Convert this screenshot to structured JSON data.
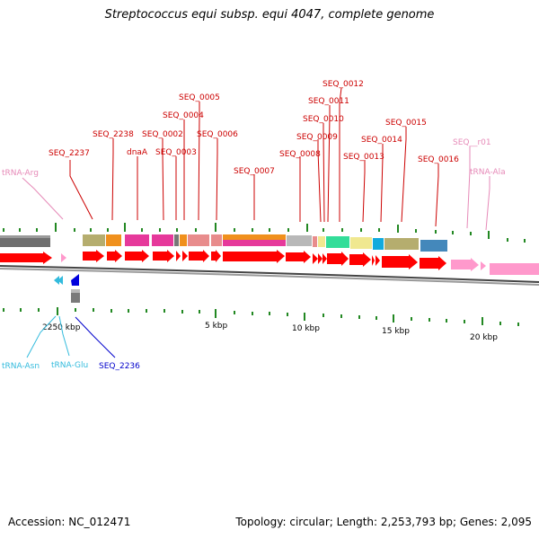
{
  "title": "Streptococcus equi subsp. equi 4047, complete genome",
  "footer": {
    "accession": "Accession: NC_012471",
    "summary": "Topology: circular; Length: 2,253,793 bp; Genes: 2,095"
  },
  "colors": {
    "cds": "#ff0000",
    "trna": "#ff99cc",
    "label_gene": "#cc0000",
    "label_trna": "#e68ab8",
    "label_trna_cyan": "#33bbdd",
    "label_seq_blue": "#0000cc",
    "tick": "#228822",
    "backbone": "#888888"
  },
  "ruler": {
    "labels": [
      "2250 kbp",
      "5 kbp",
      "10 kbp",
      "15 kbp",
      "20 kbp"
    ]
  },
  "labels_top": [
    {
      "text": "SEQ_0012",
      "kind": "gene"
    },
    {
      "text": "SEQ_0011",
      "kind": "gene"
    },
    {
      "text": "SEQ_0010",
      "kind": "gene"
    },
    {
      "text": "SEQ_0015",
      "kind": "gene"
    },
    {
      "text": "SEQ_0009",
      "kind": "gene"
    },
    {
      "text": "SEQ_0014",
      "kind": "gene"
    },
    {
      "text": "SEQ_0008",
      "kind": "gene"
    },
    {
      "text": "SEQ_0013",
      "kind": "gene"
    },
    {
      "text": "SEQ_0016",
      "kind": "gene"
    },
    {
      "text": "SEQ__r01",
      "kind": "trna"
    },
    {
      "text": "tRNA-Ala",
      "kind": "trna"
    },
    {
      "text": "SEQ_0005",
      "kind": "gene"
    },
    {
      "text": "SEQ_0004",
      "kind": "gene"
    },
    {
      "text": "SEQ_2238",
      "kind": "gene"
    },
    {
      "text": "SEQ_0002",
      "kind": "gene"
    },
    {
      "text": "SEQ_0006",
      "kind": "gene"
    },
    {
      "text": "SEQ_0003",
      "kind": "gene"
    },
    {
      "text": "dnaA",
      "kind": "gene"
    },
    {
      "text": "SEQ_2237",
      "kind": "gene"
    },
    {
      "text": "SEQ_0007",
      "kind": "gene"
    },
    {
      "text": "tRNA-Arg",
      "kind": "trna"
    }
  ],
  "labels_bottom": [
    {
      "text": "tRNA-Asn",
      "kind": "trna_cyan"
    },
    {
      "text": "tRNA-Glu",
      "kind": "trna_cyan"
    },
    {
      "text": "SEQ_2236",
      "kind": "seq_blue"
    }
  ]
}
